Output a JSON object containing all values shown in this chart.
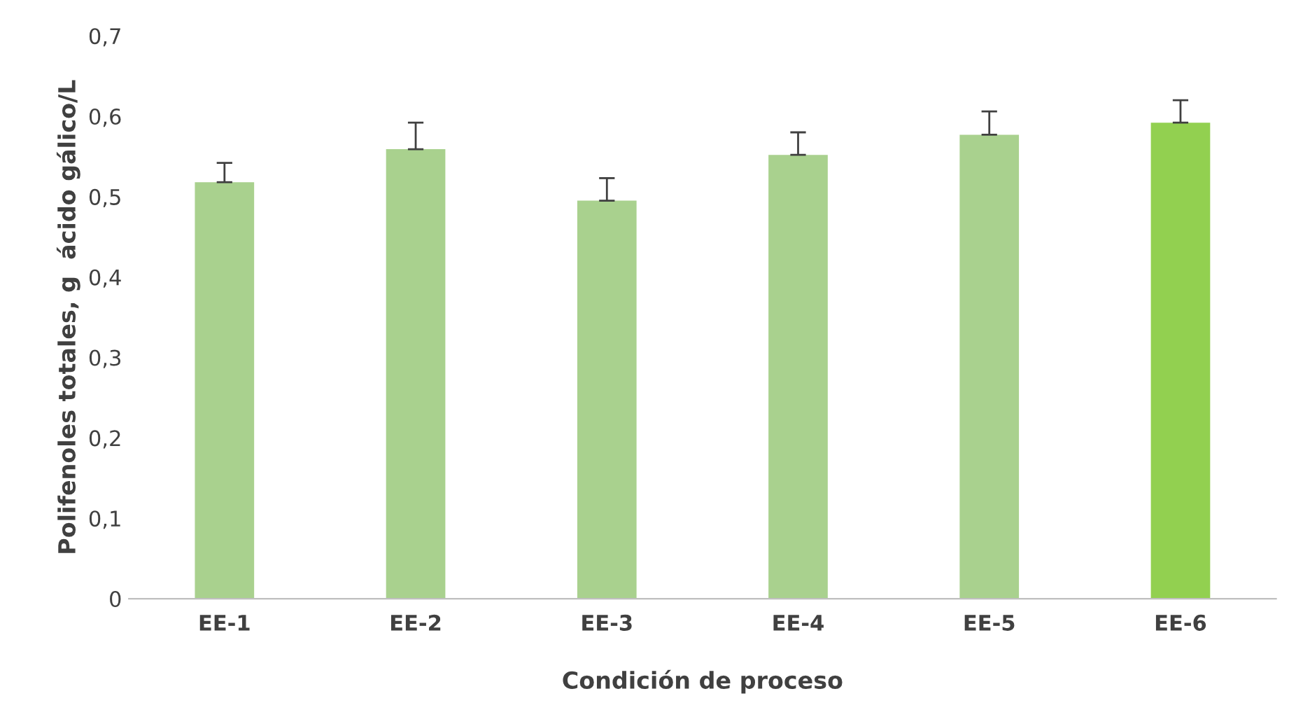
{
  "chart_data": {
    "type": "bar",
    "xlabel": "Condición de proceso",
    "ylabel": "Polifenoles totales, g  ácido gálico/L",
    "categories": [
      "EE-1",
      "EE-2",
      "EE-3",
      "EE-4",
      "EE-5",
      "EE-6"
    ],
    "values": [
      0.518,
      0.559,
      0.495,
      0.552,
      0.577,
      0.592
    ],
    "errors": [
      [
        0.518,
        0.542
      ],
      [
        0.559,
        0.592
      ],
      [
        0.495,
        0.523
      ],
      [
        0.552,
        0.58
      ],
      [
        0.577,
        0.606
      ],
      [
        0.592,
        0.62
      ]
    ],
    "colors": [
      "#a9d18e",
      "#a9d18e",
      "#a9d18e",
      "#a9d18e",
      "#a9d18e",
      "#92d050"
    ],
    "ylim": [
      0,
      0.7
    ],
    "yticks": [
      {
        "value": 0,
        "label": "0"
      },
      {
        "value": 0.1,
        "label": "0,1"
      },
      {
        "value": 0.2,
        "label": "0,2"
      },
      {
        "value": 0.3,
        "label": "0,3"
      },
      {
        "value": 0.4,
        "label": "0,4"
      },
      {
        "value": 0.5,
        "label": "0,5"
      },
      {
        "value": 0.6,
        "label": "0,6"
      },
      {
        "value": 0.7,
        "label": "0,7"
      }
    ],
    "grid": false
  }
}
